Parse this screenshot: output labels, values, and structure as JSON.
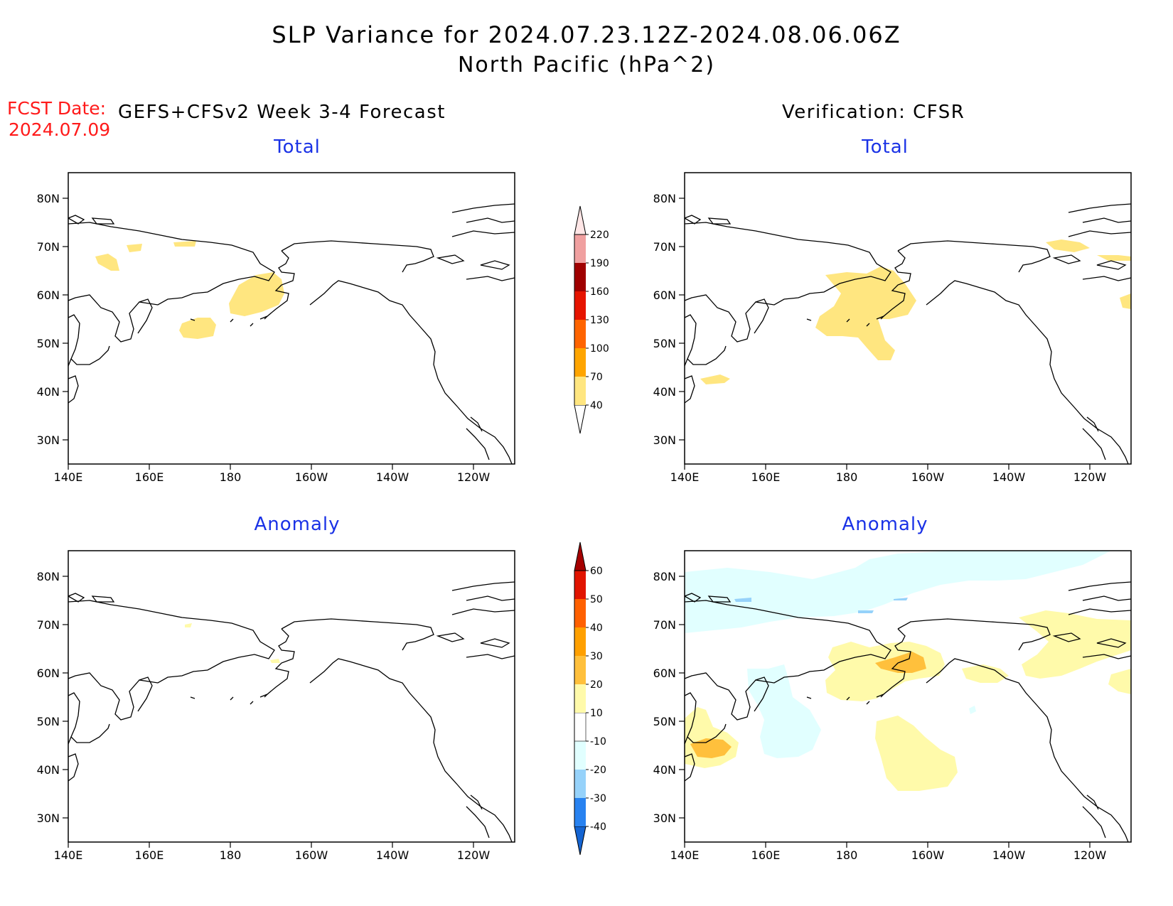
{
  "title": "SLP Variance for 2024.07.23.12Z-2024.08.06.06Z",
  "subtitle": "North Pacific (hPa^2)",
  "fcst_label": "FCST Date:",
  "fcst_date": "2024.07.09",
  "left_header": "GEFS+CFSv2 Week 3-4 Forecast",
  "right_header": "Verification: CFSR",
  "panel_titles": {
    "total": "Total",
    "anomaly": "Anomaly"
  },
  "lat_labels": [
    "80N",
    "70N",
    "60N",
    "50N",
    "40N",
    "30N"
  ],
  "lon_labels": [
    "140E",
    "160E",
    "180",
    "160W",
    "140W",
    "120W"
  ],
  "colorbar_total": {
    "levels": [
      "40",
      "70",
      "100",
      "130",
      "160",
      "190",
      "220"
    ],
    "colors": [
      "#ffe680",
      "#ffa500",
      "#ff6400",
      "#e61400",
      "#a00000",
      "#f0a0a0",
      "#ffe6e6"
    ]
  },
  "colorbar_anomaly": {
    "levels": [
      "-40",
      "-30",
      "-20",
      "-10",
      "10",
      "20",
      "30",
      "40",
      "50",
      "60"
    ],
    "colors": [
      "#1464d2",
      "#2882f0",
      "#96d2fa",
      "#e1ffff",
      "#ffffff",
      "#fffaaa",
      "#ffc03c",
      "#ffa000",
      "#ff6000",
      "#e11400",
      "#a50000"
    ]
  },
  "colors": {
    "title_blue": "#1a32e6",
    "fcst_red": "#ff1a1a",
    "shade_40_70": "#ffe680",
    "anom_10_20": "#fffaaa",
    "anom_20_30": "#ffc03c",
    "anom_neg_10_20": "#e1ffff",
    "anom_neg_20_30": "#96d2fa"
  }
}
